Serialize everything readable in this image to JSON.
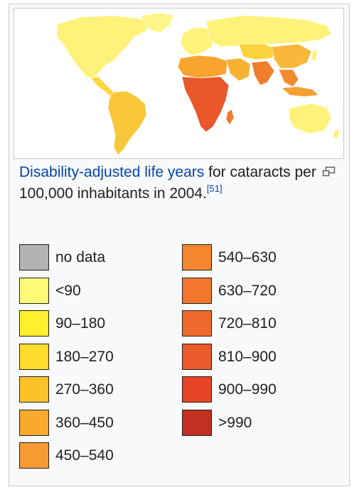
{
  "caption": {
    "link_text": "Disability-adjusted life years",
    "text": " for cataracts per 100,000 inhabitants in 2004.",
    "ref": "[51]"
  },
  "icons": {
    "magnify": "magnify-clip-icon"
  },
  "legend": {
    "left": [
      {
        "label": "no data",
        "color": "#b3b3b3"
      },
      {
        "label": "<90",
        "color": "#fffa78"
      },
      {
        "label": "90–180",
        "color": "#ffef2e"
      },
      {
        "label": "180–270",
        "color": "#ffdc2c"
      },
      {
        "label": "270–360",
        "color": "#fbc22a"
      },
      {
        "label": "360–450",
        "color": "#f8a92e"
      },
      {
        "label": "450–540",
        "color": "#f69b33"
      }
    ],
    "right": [
      {
        "label": "540–630",
        "color": "#f5862f"
      },
      {
        "label": "630–720",
        "color": "#f2762d"
      },
      {
        "label": "720–810",
        "color": "#ef6a2c"
      },
      {
        "label": "810–900",
        "color": "#ea5a2a"
      },
      {
        "label": "900–990",
        "color": "#e64525"
      },
      {
        "label": ">990",
        "color": "#c23022"
      }
    ]
  },
  "map": {
    "regions": [
      {
        "name": "north-america",
        "color": "#fff27a"
      },
      {
        "name": "greenland",
        "color": "#fff58a"
      },
      {
        "name": "central-america",
        "color": "#ffd640"
      },
      {
        "name": "south-america",
        "color": "#fbc73a"
      },
      {
        "name": "europe",
        "color": "#fff27a"
      },
      {
        "name": "russia",
        "color": "#fff27a"
      },
      {
        "name": "north-africa",
        "color": "#f8a42e"
      },
      {
        "name": "sub-saharan-africa",
        "color": "#e9572a"
      },
      {
        "name": "madagascar",
        "color": "#f07a2d"
      },
      {
        "name": "middle-east",
        "color": "#f8b232"
      },
      {
        "name": "central-asia",
        "color": "#fad43c"
      },
      {
        "name": "south-asia",
        "color": "#f07e2e"
      },
      {
        "name": "china",
        "color": "#f9b83a"
      },
      {
        "name": "southeast-asia",
        "color": "#f28a30"
      },
      {
        "name": "japan",
        "color": "#fff27a"
      },
      {
        "name": "indonesia",
        "color": "#f5a032"
      },
      {
        "name": "australia",
        "color": "#fff27a"
      },
      {
        "name": "new-zealand",
        "color": "#fff27a"
      }
    ]
  }
}
